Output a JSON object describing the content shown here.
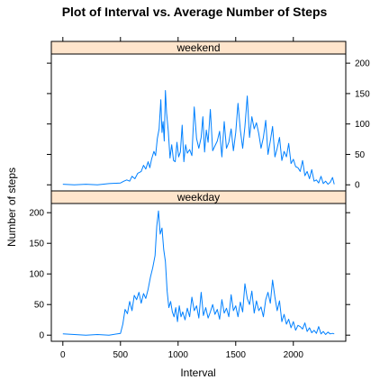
{
  "chart_data": {
    "type": "line",
    "title": "Plot of Interval vs. Average Number of Steps",
    "xlabel": "Interval",
    "ylabel": "Number of steps",
    "xlim": [
      -100,
      2455
    ],
    "ylim": [
      -10,
      215
    ],
    "x_ticks": [
      0,
      500,
      1000,
      1500,
      2000
    ],
    "y_ticks": [
      0,
      50,
      100,
      150,
      200
    ],
    "grid": false,
    "line_color": "#0080ff",
    "strip_color": "#ffe5cc",
    "panels": [
      {
        "name": "weekend",
        "x": [
          0,
          100,
          200,
          300,
          400,
          500,
          530,
          555,
          580,
          600,
          625,
          650,
          680,
          700,
          720,
          740,
          755,
          770,
          790,
          805,
          820,
          835,
          850,
          860,
          870,
          880,
          890,
          900,
          915,
          930,
          945,
          960,
          975,
          990,
          1005,
          1020,
          1035,
          1050,
          1065,
          1080,
          1100,
          1120,
          1140,
          1160,
          1180,
          1200,
          1215,
          1230,
          1245,
          1260,
          1280,
          1300,
          1320,
          1340,
          1360,
          1380,
          1400,
          1420,
          1440,
          1460,
          1480,
          1500,
          1520,
          1540,
          1560,
          1580,
          1600,
          1620,
          1640,
          1660,
          1680,
          1700,
          1720,
          1740,
          1760,
          1780,
          1800,
          1820,
          1840,
          1860,
          1880,
          1900,
          1920,
          1940,
          1960,
          1980,
          2000,
          2020,
          2040,
          2060,
          2080,
          2100,
          2120,
          2140,
          2160,
          2180,
          2200,
          2220,
          2240,
          2260,
          2280,
          2300,
          2320,
          2340,
          2355
        ],
        "values": [
          1,
          0,
          1,
          0,
          2,
          3,
          6,
          8,
          6,
          14,
          10,
          19,
          22,
          32,
          26,
          38,
          28,
          42,
          55,
          48,
          76,
          92,
          140,
          86,
          104,
          72,
          155,
          118,
          88,
          44,
          66,
          40,
          38,
          70,
          46,
          54,
          98,
          38,
          66,
          52,
          58,
          48,
          128,
          76,
          60,
          78,
          112,
          54,
          90,
          70,
          124,
          56,
          64,
          72,
          88,
          46,
          104,
          60,
          70,
          92,
          56,
          86,
          134,
          90,
          60,
          96,
          146,
          78,
          112,
          92,
          102,
          84,
          60,
          78,
          106,
          50,
          72,
          96,
          46,
          60,
          78,
          40,
          55,
          46,
          68,
          35,
          42,
          30,
          28,
          22,
          40,
          15,
          22,
          10,
          25,
          6,
          8,
          3,
          14,
          2,
          6,
          1,
          4,
          12,
          1
        ]
      },
      {
        "name": "weekday",
        "x": [
          0,
          100,
          200,
          300,
          400,
          500,
          520,
          540,
          560,
          580,
          600,
          620,
          640,
          660,
          680,
          700,
          720,
          740,
          760,
          780,
          800,
          815,
          830,
          845,
          860,
          875,
          890,
          905,
          920,
          935,
          950,
          965,
          980,
          995,
          1010,
          1025,
          1040,
          1060,
          1080,
          1100,
          1120,
          1140,
          1160,
          1180,
          1200,
          1220,
          1240,
          1260,
          1280,
          1300,
          1320,
          1340,
          1360,
          1380,
          1400,
          1420,
          1440,
          1460,
          1480,
          1500,
          1520,
          1540,
          1560,
          1580,
          1600,
          1620,
          1640,
          1660,
          1680,
          1700,
          1720,
          1740,
          1760,
          1780,
          1800,
          1820,
          1840,
          1860,
          1880,
          1900,
          1920,
          1940,
          1960,
          1980,
          2000,
          2020,
          2040,
          2060,
          2080,
          2100,
          2120,
          2140,
          2160,
          2180,
          2200,
          2220,
          2240,
          2260,
          2280,
          2300,
          2320,
          2340,
          2355
        ],
        "values": [
          2,
          1,
          0,
          1,
          0,
          3,
          18,
          42,
          35,
          55,
          40,
          65,
          58,
          70,
          52,
          68,
          60,
          75,
          95,
          110,
          130,
          178,
          203,
          165,
          175,
          140,
          120,
          72,
          45,
          55,
          38,
          30,
          45,
          22,
          48,
          30,
          38,
          25,
          44,
          30,
          62,
          40,
          48,
          28,
          70,
          32,
          45,
          28,
          38,
          50,
          34,
          42,
          26,
          58,
          36,
          44,
          30,
          66,
          40,
          48,
          30,
          54,
          38,
          84,
          60,
          50,
          72,
          36,
          56,
          40,
          46,
          30,
          58,
          70,
          52,
          90,
          62,
          40,
          56,
          22,
          34,
          18,
          26,
          12,
          22,
          8,
          16,
          14,
          10,
          20,
          6,
          12,
          4,
          8,
          3,
          14,
          2,
          6,
          1,
          5,
          2,
          3,
          2
        ]
      }
    ]
  }
}
